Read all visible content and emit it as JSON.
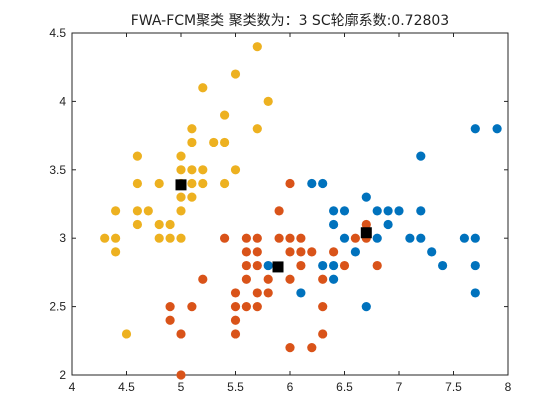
{
  "chart_data": {
    "type": "scatter",
    "title": "FWA-FCM聚类  聚类数为：3  SC轮廓系数:0.72803",
    "xlabel": "",
    "ylabel": "",
    "xlim": [
      4,
      8
    ],
    "ylim": [
      2,
      4.5
    ],
    "xticks": [
      "4",
      "4.5",
      "5",
      "5.5",
      "6",
      "6.5",
      "7",
      "7.5",
      "8"
    ],
    "yticks": [
      "2",
      "2.5",
      "3",
      "3.5",
      "4",
      "4.5"
    ],
    "grid": false,
    "series": [
      {
        "color": "#EDB120",
        "points": [
          [
            4.3,
            3.0
          ],
          [
            4.4,
            2.9
          ],
          [
            4.4,
            3.0
          ],
          [
            4.4,
            3.2
          ],
          [
            4.5,
            2.3
          ],
          [
            4.6,
            3.1
          ],
          [
            4.6,
            3.2
          ],
          [
            4.6,
            3.4
          ],
          [
            4.6,
            3.6
          ],
          [
            4.7,
            3.2
          ],
          [
            4.8,
            3.0
          ],
          [
            4.8,
            3.1
          ],
          [
            4.8,
            3.4
          ],
          [
            4.9,
            3.0
          ],
          [
            4.9,
            3.1
          ],
          [
            5.0,
            3.0
          ],
          [
            5.0,
            3.2
          ],
          [
            5.0,
            3.3
          ],
          [
            5.0,
            3.4
          ],
          [
            5.0,
            3.5
          ],
          [
            5.0,
            3.6
          ],
          [
            5.1,
            3.3
          ],
          [
            5.1,
            3.4
          ],
          [
            5.1,
            3.5
          ],
          [
            5.1,
            3.7
          ],
          [
            5.1,
            3.8
          ],
          [
            5.2,
            3.4
          ],
          [
            5.2,
            3.5
          ],
          [
            5.2,
            4.1
          ],
          [
            5.3,
            3.7
          ],
          [
            5.4,
            3.4
          ],
          [
            5.4,
            3.7
          ],
          [
            5.4,
            3.9
          ],
          [
            5.5,
            3.5
          ],
          [
            5.5,
            4.2
          ],
          [
            5.7,
            3.8
          ],
          [
            5.7,
            4.4
          ],
          [
            5.8,
            4.0
          ]
        ]
      },
      {
        "color": "#D95319",
        "points": [
          [
            4.9,
            2.4
          ],
          [
            4.9,
            2.5
          ],
          [
            5.0,
            2.0
          ],
          [
            5.0,
            2.3
          ],
          [
            5.1,
            2.5
          ],
          [
            5.2,
            2.7
          ],
          [
            5.4,
            3.0
          ],
          [
            5.5,
            2.3
          ],
          [
            5.5,
            2.4
          ],
          [
            5.5,
            2.5
          ],
          [
            5.5,
            2.6
          ],
          [
            5.6,
            2.5
          ],
          [
            5.6,
            2.7
          ],
          [
            5.6,
            2.8
          ],
          [
            5.6,
            2.9
          ],
          [
            5.6,
            3.0
          ],
          [
            5.7,
            2.5
          ],
          [
            5.7,
            2.6
          ],
          [
            5.7,
            2.8
          ],
          [
            5.7,
            2.9
          ],
          [
            5.7,
            3.0
          ],
          [
            5.8,
            2.6
          ],
          [
            5.8,
            2.7
          ],
          [
            5.9,
            3.0
          ],
          [
            5.9,
            3.2
          ],
          [
            6.0,
            2.2
          ],
          [
            6.0,
            2.7
          ],
          [
            6.0,
            2.9
          ],
          [
            6.0,
            3.0
          ],
          [
            6.0,
            3.4
          ],
          [
            6.1,
            2.8
          ],
          [
            6.1,
            2.9
          ],
          [
            6.1,
            3.0
          ],
          [
            6.2,
            2.2
          ],
          [
            6.2,
            2.9
          ],
          [
            6.3,
            2.3
          ],
          [
            6.3,
            2.5
          ],
          [
            6.3,
            2.7
          ],
          [
            6.4,
            2.9
          ],
          [
            6.5,
            2.8
          ],
          [
            6.6,
            3.0
          ],
          [
            6.7,
            3.0
          ],
          [
            6.7,
            3.1
          ],
          [
            6.8,
            2.8
          ]
        ]
      },
      {
        "color": "#0072BD",
        "points": [
          [
            5.8,
            2.8
          ],
          [
            6.1,
            2.6
          ],
          [
            6.2,
            3.4
          ],
          [
            6.3,
            2.8
          ],
          [
            6.3,
            3.4
          ],
          [
            6.4,
            2.7
          ],
          [
            6.4,
            2.8
          ],
          [
            6.4,
            3.1
          ],
          [
            6.4,
            3.2
          ],
          [
            6.5,
            3.0
          ],
          [
            6.5,
            3.2
          ],
          [
            6.6,
            2.9
          ],
          [
            6.7,
            2.5
          ],
          [
            6.7,
            3.3
          ],
          [
            6.8,
            3.0
          ],
          [
            6.8,
            3.2
          ],
          [
            6.9,
            3.1
          ],
          [
            6.9,
            3.2
          ],
          [
            7.0,
            3.2
          ],
          [
            7.1,
            3.0
          ],
          [
            7.2,
            3.0
          ],
          [
            7.2,
            3.2
          ],
          [
            7.2,
            3.6
          ],
          [
            7.3,
            2.9
          ],
          [
            7.4,
            2.8
          ],
          [
            7.6,
            3.0
          ],
          [
            7.7,
            2.6
          ],
          [
            7.7,
            2.8
          ],
          [
            7.7,
            3.0
          ],
          [
            7.7,
            3.8
          ],
          [
            7.9,
            3.8
          ]
        ]
      }
    ],
    "centroids": {
      "color": "#000000",
      "marker": "square",
      "points": [
        [
          5.0,
          3.39
        ],
        [
          5.89,
          2.79
        ],
        [
          6.7,
          3.04
        ]
      ]
    }
  }
}
